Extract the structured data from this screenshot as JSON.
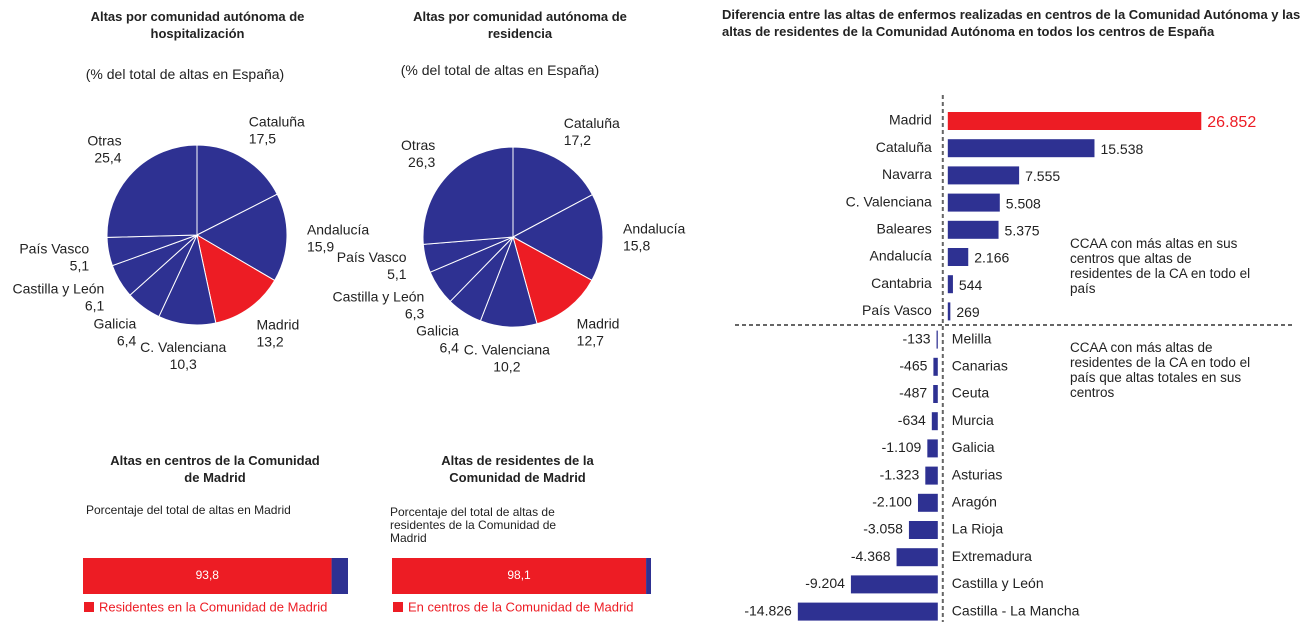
{
  "chart_data": [
    {
      "type": "pie",
      "title": "Altas por comunidad autónoma de hospitalización",
      "subtitle": "(% del total de altas en España)",
      "categories": [
        "Cataluña",
        "Andalucía",
        "Madrid",
        "C. Valenciana",
        "Galicia",
        "Castilla y León",
        "País Vasco",
        "Otras"
      ],
      "values": [
        17.5,
        15.9,
        13.2,
        10.3,
        6.4,
        6.1,
        5.1,
        25.4
      ],
      "value_labels": [
        "17,5",
        "15,9",
        "13,2",
        "10,3",
        "6,4",
        "6,1",
        "5,1",
        "25,4"
      ],
      "colors": [
        "#2e3192",
        "#2e3192",
        "#ed1c24",
        "#2e3192",
        "#2e3192",
        "#2e3192",
        "#2e3192",
        "#2e3192"
      ]
    },
    {
      "type": "pie",
      "title": "Altas por comunidad autónoma de residencia",
      "subtitle": "(% del total de altas en España)",
      "categories": [
        "Cataluña",
        "Andalucía",
        "Madrid",
        "C. Valenciana",
        "Galicia",
        "Castilla y León",
        "País Vasco",
        "Otras"
      ],
      "values": [
        17.2,
        15.8,
        12.7,
        10.2,
        6.4,
        6.3,
        5.1,
        26.3
      ],
      "value_labels": [
        "17,2",
        "15,8",
        "12,7",
        "10,2",
        "6,4",
        "6,3",
        "5,1",
        "26,3"
      ],
      "colors": [
        "#2e3192",
        "#2e3192",
        "#ed1c24",
        "#2e3192",
        "#2e3192",
        "#2e3192",
        "#2e3192",
        "#2e3192"
      ]
    },
    {
      "type": "stacked_bar",
      "title": "Altas en centros de la Comunidad de Madrid",
      "subtitle": "Porcentaje del total de altas en Madrid",
      "xlim": [
        0,
        100
      ],
      "series": [
        {
          "name": "Residentes en la Comunidad de Madrid",
          "color": "#ed1c24",
          "values": [
            93.8
          ],
          "value_labels": [
            "93,8"
          ]
        },
        {
          "color": "#2e3192",
          "values": [
            6.2
          ]
        }
      ]
    },
    {
      "type": "stacked_bar",
      "title": "Altas de residentes de la Comunidad de Madrid",
      "subtitle": "Porcentaje del total de altas de residentes de la Comunidad de Madrid",
      "xlim": [
        0,
        100
      ],
      "series": [
        {
          "name": "En centros de la Comunidad de Madrid",
          "color": "#ed1c24",
          "values": [
            98.1
          ],
          "value_labels": [
            "98,1"
          ]
        },
        {
          "color": "#2e3192",
          "values": [
            1.9
          ]
        }
      ]
    },
    {
      "type": "hbar",
      "title": "Diferencia entre las altas de enfermos realizadas en centros de la Comunidad Autónoma y las altas de residentes de la Comunidad Autónoma en todos los centros de España",
      "categories": [
        "Madrid",
        "Cataluña",
        "Navarra",
        "C. Valenciana",
        "Baleares",
        "Andalucía",
        "Cantabria",
        "País Vasco",
        "Melilla",
        "Canarias",
        "Ceuta",
        "Murcia",
        "Galicia",
        "Asturias",
        "Aragón",
        "La Rioja",
        "Extremadura",
        "Castilla y León",
        "Castilla - La Mancha"
      ],
      "values": [
        26852,
        15538,
        7555,
        5508,
        5375,
        2166,
        544,
        269,
        -133,
        -465,
        -487,
        -634,
        -1109,
        -1323,
        -2100,
        -3058,
        -4368,
        -9204,
        -14826
      ],
      "value_labels": [
        "26.852",
        "15.538",
        "7.555",
        "5.508",
        "5.375",
        "2.166",
        "544",
        "269",
        "-133",
        "-465",
        "-487",
        "-634",
        "-1.109",
        "-1.323",
        "-2.100",
        "-3.058",
        "-4.368",
        "-9.204",
        "-14.826"
      ],
      "colors": [
        "#ed1c24",
        "#2e3192",
        "#2e3192",
        "#2e3192",
        "#2e3192",
        "#2e3192",
        "#2e3192",
        "#2e3192",
        "#2e3192",
        "#2e3192",
        "#2e3192",
        "#2e3192",
        "#2e3192",
        "#2e3192",
        "#2e3192",
        "#2e3192",
        "#2e3192",
        "#2e3192",
        "#2e3192"
      ],
      "xlim": [
        -20000,
        30000
      ],
      "annotations": [
        "CCAA con más altas en sus centros que altas de residentes de la CA en todo el país",
        "CCAA con más altas de residentes de la CA en todo el país que altas totales en sus centros"
      ]
    }
  ]
}
